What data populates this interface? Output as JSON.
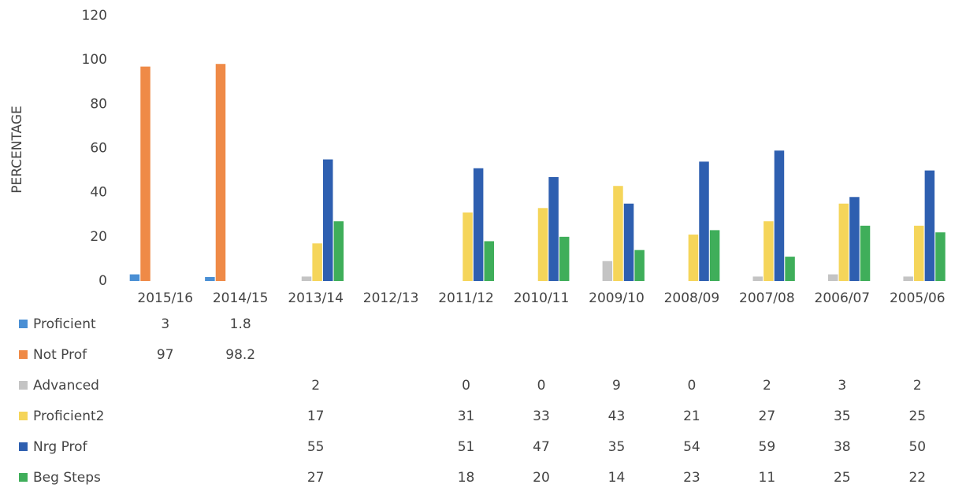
{
  "chart_data": {
    "type": "bar",
    "ylabel": "PERCENTAGE",
    "categories": [
      "2015/16",
      "2014/15",
      "2013/14",
      "2012/13",
      "2011/12",
      "2010/11",
      "2009/10",
      "2008/09",
      "2007/08",
      "2006/07",
      "2005/06"
    ],
    "series": [
      {
        "name": "Proficient",
        "color": "#4a8fd4",
        "values": [
          3,
          1.8,
          null,
          null,
          null,
          null,
          null,
          null,
          null,
          null,
          null
        ]
      },
      {
        "name": "Not Prof",
        "color": "#ef8a47",
        "values": [
          97,
          98.2,
          null,
          null,
          null,
          null,
          null,
          null,
          null,
          null,
          null
        ]
      },
      {
        "name": "Advanced",
        "color": "#c4c4c4",
        "values": [
          null,
          null,
          2,
          null,
          0,
          0,
          9,
          0,
          2,
          3,
          2
        ]
      },
      {
        "name": "Proficient2",
        "color": "#f5d55a",
        "values": [
          null,
          null,
          17,
          null,
          31,
          33,
          43,
          21,
          27,
          35,
          25
        ]
      },
      {
        "name": "Nrg Prof",
        "color": "#2e5fb0",
        "values": [
          null,
          null,
          55,
          null,
          51,
          47,
          35,
          54,
          59,
          38,
          50
        ]
      },
      {
        "name": "Beg Steps",
        "color": "#3fae5a",
        "values": [
          null,
          null,
          27,
          null,
          18,
          20,
          14,
          23,
          11,
          25,
          22
        ]
      }
    ],
    "ylim": [
      0,
      120
    ],
    "yticks": [
      0,
      20,
      40,
      60,
      80,
      100,
      120
    ],
    "grid": false,
    "legend": "bottom"
  }
}
